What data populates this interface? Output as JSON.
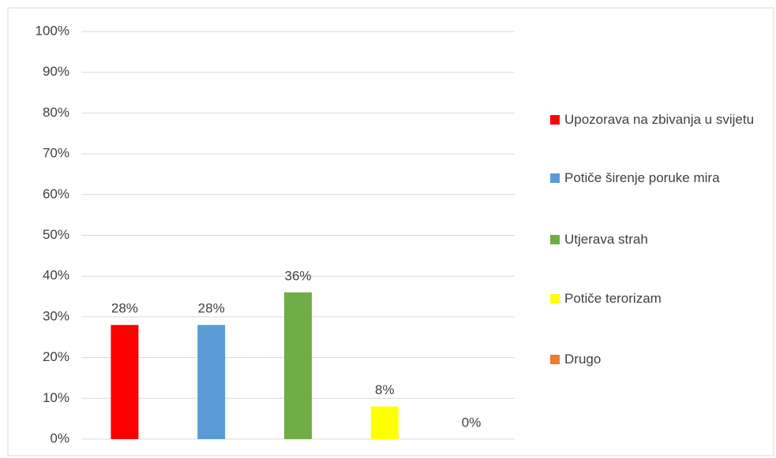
{
  "chart_data": {
    "type": "bar",
    "categories": [
      "Upozorava na zbivanja u svijetu",
      "Potiče širenje poruke mira",
      "Utjerava strah",
      "Potiče terorizam",
      "Drugo"
    ],
    "values": [
      28,
      28,
      36,
      8,
      0
    ],
    "value_labels": [
      "28%",
      "28%",
      "36%",
      "8%",
      "0%"
    ],
    "colors": [
      "#ff0000",
      "#5b9bd5",
      "#70ad47",
      "#ffff00",
      "#ed7d31"
    ],
    "ylim": [
      0,
      100
    ],
    "yticks": [
      {
        "value": 0,
        "label": "0%"
      },
      {
        "value": 10,
        "label": "10%"
      },
      {
        "value": 20,
        "label": "20%"
      },
      {
        "value": 30,
        "label": "30%"
      },
      {
        "value": 40,
        "label": "40%"
      },
      {
        "value": 50,
        "label": "50%"
      },
      {
        "value": 60,
        "label": "60%"
      },
      {
        "value": 70,
        "label": "70%"
      },
      {
        "value": 80,
        "label": "80%"
      },
      {
        "value": 90,
        "label": "90%"
      },
      {
        "value": 100,
        "label": "100%"
      }
    ],
    "grid": true
  }
}
